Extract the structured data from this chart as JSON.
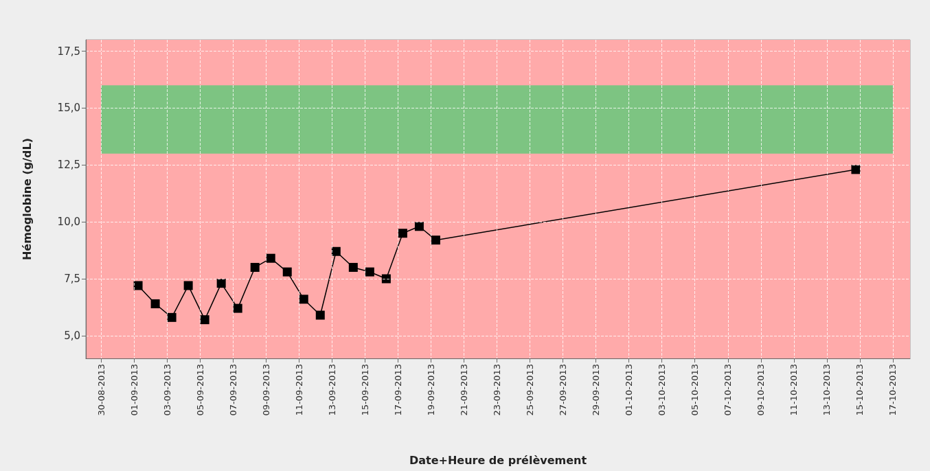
{
  "chart_data": {
    "type": "line",
    "xlabel": "Date+Heure de prélèvement",
    "ylabel": "Hémoglobine (g/dL)",
    "x": [
      "2013-09-01T06:00",
      "2013-09-02T07:00",
      "2013-09-03T07:00",
      "2013-09-04T07:00",
      "2013-09-05T07:00",
      "2013-09-06T07:00",
      "2013-09-07T07:00",
      "2013-09-08T08:00",
      "2013-09-09T07:00",
      "2013-09-10T07:00",
      "2013-09-11T07:00",
      "2013-09-12T07:00",
      "2013-09-13T06:00",
      "2013-09-14T07:00",
      "2013-09-15T07:00",
      "2013-09-16T07:00",
      "2013-09-17T07:00",
      "2013-09-18T07:00",
      "2013-09-19T07:00",
      "2013-10-14T18:00"
    ],
    "series": [
      {
        "color": "#000000",
        "values": [
          7.2,
          6.4,
          5.8,
          7.2,
          5.7,
          7.3,
          6.2,
          8.0,
          8.4,
          7.8,
          6.6,
          5.9,
          8.7,
          8.0,
          7.8,
          7.5,
          9.5,
          9.8,
          9.2,
          12.3
        ]
      }
    ],
    "marker": "square",
    "line_style": "solid",
    "xlim": [
      "2013-08-29T02:00",
      "2013-10-18T01:00"
    ],
    "xticks": [
      {
        "value": "2013-08-30",
        "label": "30-08-2013"
      },
      {
        "value": "2013-09-01",
        "label": "01-09-2013"
      },
      {
        "value": "2013-09-03",
        "label": "03-09-2013"
      },
      {
        "value": "2013-09-05",
        "label": "05-09-2013"
      },
      {
        "value": "2013-09-07",
        "label": "07-09-2013"
      },
      {
        "value": "2013-09-09",
        "label": "09-09-2013"
      },
      {
        "value": "2013-09-11",
        "label": "11-09-2013"
      },
      {
        "value": "2013-09-13",
        "label": "13-09-2013"
      },
      {
        "value": "2013-09-15",
        "label": "15-09-2013"
      },
      {
        "value": "2013-09-17",
        "label": "17-09-2013"
      },
      {
        "value": "2013-09-19",
        "label": "19-09-2013"
      },
      {
        "value": "2013-09-21",
        "label": "21-09-2013"
      },
      {
        "value": "2013-09-23",
        "label": "23-09-2013"
      },
      {
        "value": "2013-09-25",
        "label": "25-09-2013"
      },
      {
        "value": "2013-09-27",
        "label": "27-09-2013"
      },
      {
        "value": "2013-09-29",
        "label": "29-09-2013"
      },
      {
        "value": "2013-10-01",
        "label": "01-10-2013"
      },
      {
        "value": "2013-10-03",
        "label": "03-10-2013"
      },
      {
        "value": "2013-10-05",
        "label": "05-10-2013"
      },
      {
        "value": "2013-10-07",
        "label": "07-10-2013"
      },
      {
        "value": "2013-10-09",
        "label": "09-10-2013"
      },
      {
        "value": "2013-10-11",
        "label": "11-10-2013"
      },
      {
        "value": "2013-10-13",
        "label": "13-10-2013"
      },
      {
        "value": "2013-10-15",
        "label": "15-10-2013"
      },
      {
        "value": "2013-10-17",
        "label": "17-10-2013"
      }
    ],
    "ylim": [
      4,
      18
    ],
    "yticks": [
      {
        "value": 5,
        "label": "5,0"
      },
      {
        "value": 7.5,
        "label": "7,5"
      },
      {
        "value": 10,
        "label": "10,0"
      },
      {
        "value": 12.5,
        "label": "12,5"
      },
      {
        "value": 15,
        "label": "15,0"
      },
      {
        "value": 17.5,
        "label": "17,5"
      }
    ],
    "bands": [
      {
        "axis": "y",
        "from": 4,
        "to": 18,
        "color": "#ffaaaa"
      },
      {
        "axis": "y",
        "from": 13,
        "to": 16,
        "color": "#7dc482"
      }
    ],
    "grid": true
  }
}
